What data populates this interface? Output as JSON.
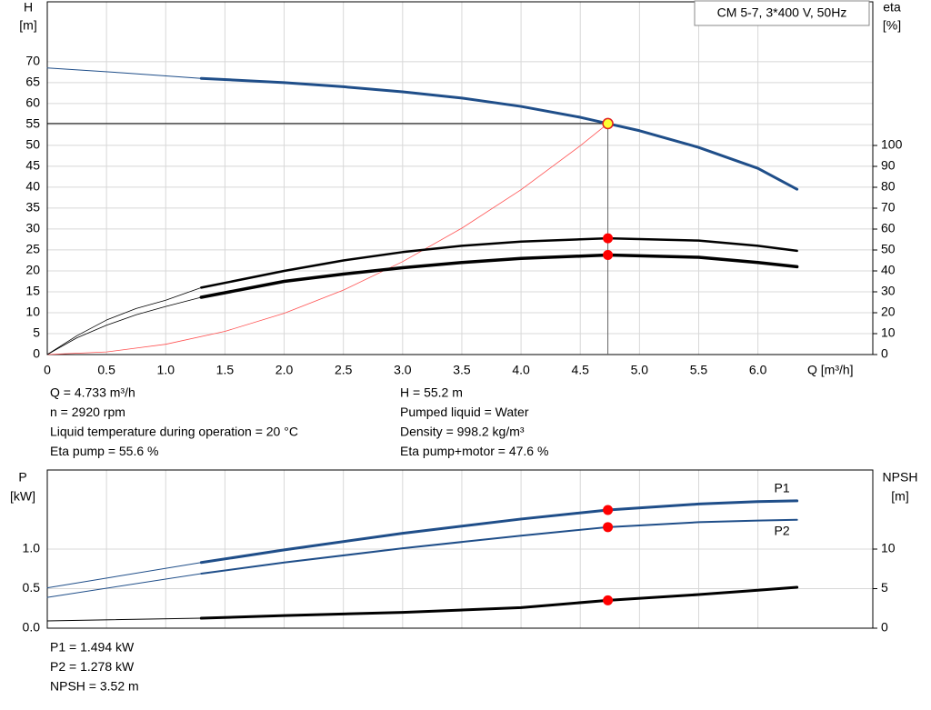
{
  "chart_data": [
    {
      "type": "line",
      "title": "CM 5-7, 3*400 V, 50Hz",
      "y_label": "H",
      "y_unit": "[m]",
      "y2_label": "eta",
      "y2_unit": "[%]",
      "x_label": "Q [m³/h]",
      "xlim": [
        0,
        6.97
      ],
      "ylim": [
        0,
        84.3
      ],
      "y2lim": [
        0,
        168.7
      ],
      "grid": true,
      "xticks": [
        0,
        0.5,
        {
          "value": 1,
          "label": "1.0"
        },
        1.5,
        {
          "value": 2,
          "label": "2.0"
        },
        2.5,
        {
          "value": 3,
          "label": "3.0"
        },
        3.5,
        {
          "value": 4,
          "label": "4.0"
        },
        4.5,
        {
          "value": 5,
          "label": "5.0"
        },
        5.5,
        {
          "value": 6,
          "label": "6.0"
        }
      ],
      "yticks": [
        0,
        5,
        10,
        15,
        20,
        25,
        30,
        35,
        40,
        45,
        50,
        55,
        60,
        65,
        70
      ],
      "y2ticks": [
        0,
        10,
        20,
        30,
        40,
        50,
        60,
        70,
        80,
        90,
        100
      ],
      "series": [
        {
          "color": "#ff5050",
          "width": 0.8,
          "x": [
            0,
            0.5,
            1,
            1.5,
            2,
            2.5,
            3,
            3.5,
            4,
            4.5,
            4.733
          ],
          "values": [
            0,
            0.62,
            2.46,
            5.54,
            9.86,
            15.4,
            22.2,
            30.2,
            39.4,
            49.9,
            55.2
          ]
        },
        {
          "color": "#1f4e89",
          "width": 1,
          "x": [
            0,
            0.65,
            1.3
          ],
          "values": [
            68.5,
            67.3,
            66
          ]
        },
        {
          "color": "#1f4e89",
          "width": 3,
          "x": [
            1.3,
            2,
            2.5,
            3,
            3.5,
            4,
            4.5,
            4.733,
            5,
            5.5,
            6,
            6.33
          ],
          "values": [
            66,
            65,
            64,
            62.8,
            61.3,
            59.3,
            56.7,
            55.2,
            53.5,
            49.5,
            44.5,
            39.5
          ]
        },
        {
          "color": "#000000",
          "width": 0.8,
          "axis": "y2",
          "x": [
            0,
            0.25,
            0.5,
            0.75,
            1,
            1.3
          ],
          "values": [
            0,
            9,
            16.5,
            22,
            26,
            32
          ]
        },
        {
          "color": "#000000",
          "width": 2.5,
          "axis": "y2",
          "x": [
            1.3,
            2,
            2.5,
            3,
            3.5,
            4,
            4.733,
            5.5,
            6,
            6.33
          ],
          "values": [
            32,
            40,
            45,
            49,
            52,
            54,
            55.6,
            54.5,
            52,
            49.6
          ]
        },
        {
          "color": "#000000",
          "width": 0.8,
          "axis": "y2",
          "x": [
            0,
            0.25,
            0.5,
            0.75,
            1,
            1.3
          ],
          "values": [
            0,
            8,
            14,
            19,
            23,
            27.4
          ]
        },
        {
          "color": "#000000",
          "width": 3.5,
          "axis": "y2",
          "x": [
            1.3,
            2,
            2.5,
            3,
            3.5,
            4,
            4.733,
            5.5,
            6,
            6.33
          ],
          "values": [
            27.4,
            35,
            38.5,
            41.5,
            44,
            46,
            47.6,
            46.5,
            44,
            42
          ]
        }
      ],
      "points": [
        {
          "x": 4.733,
          "y": 55.2,
          "color": "#ffff33"
        },
        {
          "x": 4.733,
          "y": 55.6,
          "axis": "y2",
          "color": "#ff0000"
        },
        {
          "x": 4.733,
          "y": 47.6,
          "axis": "y2",
          "color": "#ff0000"
        }
      ],
      "info": [
        [
          "Q = 4.733 m³/h",
          "n = 2920 rpm",
          "Liquid temperature during operation = 20 °C",
          "Eta pump = 55.6 %"
        ],
        [
          "H = 55.2 m",
          "Pumped liquid = Water",
          "Density = 998.2 kg/m³",
          "Eta pump+motor = 47.6 %"
        ]
      ]
    },
    {
      "type": "line",
      "y_label": "P",
      "y_unit": "[kW]",
      "y2_label": "NPSH",
      "y2_unit": "[m]",
      "xlim": [
        0,
        6.97
      ],
      "ylim": [
        0,
        2
      ],
      "y2lim": [
        0,
        20
      ],
      "grid": true,
      "yticks": [
        {
          "value": 0,
          "label": "0.0"
        },
        0.5,
        {
          "value": 1,
          "label": "1.0"
        }
      ],
      "y2ticks": [
        0,
        5,
        10
      ],
      "series": [
        {
          "color": "#1f4e89",
          "width": 1,
          "x": [
            0,
            1.3
          ],
          "values": [
            0.51,
            0.83
          ]
        },
        {
          "name": "P1",
          "color": "#1f4e89",
          "width": 3,
          "x": [
            1.3,
            2,
            3,
            4,
            4.733,
            5.5,
            6,
            6.33
          ],
          "values": [
            0.83,
            0.99,
            1.2,
            1.38,
            1.494,
            1.57,
            1.6,
            1.61
          ]
        },
        {
          "color": "#1f4e89",
          "width": 1,
          "x": [
            0,
            1.3
          ],
          "values": [
            0.39,
            0.69
          ]
        },
        {
          "name": "P2",
          "color": "#1f4e89",
          "width": 2,
          "x": [
            1.3,
            2,
            3,
            4,
            4.733,
            5.5,
            6,
            6.33
          ],
          "values": [
            0.69,
            0.83,
            1.01,
            1.17,
            1.278,
            1.34,
            1.36,
            1.37
          ]
        },
        {
          "color": "#000000",
          "width": 1,
          "axis": "y2",
          "x": [
            0,
            1.3
          ],
          "values": [
            0.92,
            1.26
          ]
        },
        {
          "color": "#000000",
          "width": 3,
          "axis": "y2",
          "x": [
            1.3,
            2,
            3,
            4,
            4.733,
            5.5,
            6,
            6.33
          ],
          "values": [
            1.26,
            1.6,
            2.0,
            2.6,
            3.52,
            4.25,
            4.8,
            5.17
          ]
        }
      ],
      "points": [
        {
          "x": 4.733,
          "y": 1.494,
          "color": "#ff0000"
        },
        {
          "x": 4.733,
          "y": 1.278,
          "color": "#ff0000"
        },
        {
          "x": 4.733,
          "y": 3.52,
          "axis": "y2",
          "color": "#ff0000"
        }
      ],
      "info": [
        [
          "P1 = 1.494 kW",
          "P2 = 1.278 kW",
          "NPSH = 3.52 m"
        ]
      ]
    }
  ]
}
